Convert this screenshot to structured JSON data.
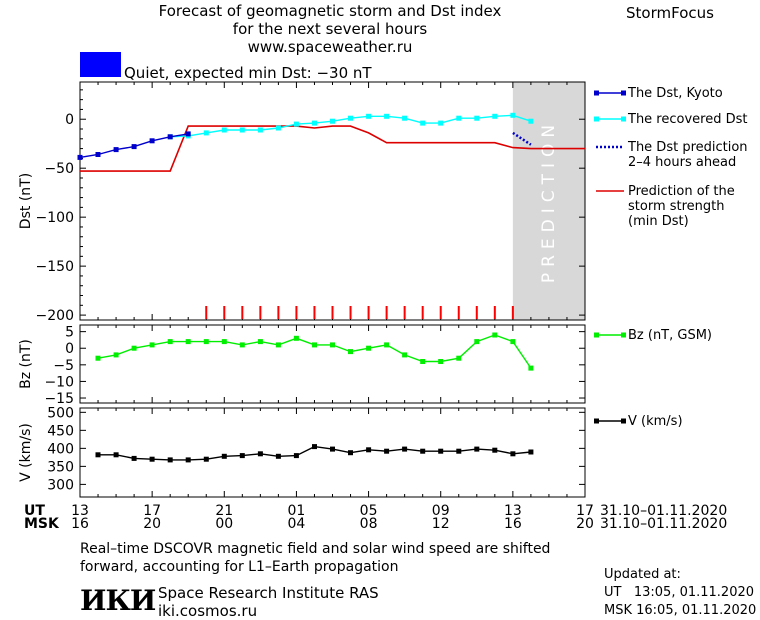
{
  "header": {
    "title_line1": "Forecast of geomagnetic storm and Dst index",
    "title_line2": "for the next several hours",
    "title_line3": "www.spaceweather.ru",
    "brand": "StormFocus",
    "status": "Quiet, expected min Dst: −30 nT",
    "status_color": "#0000ff"
  },
  "legend": {
    "kyoto": "The Dst, Kyoto",
    "recovered": "The recovered Dst",
    "prediction": "The Dst prediction\n2–4 hours ahead",
    "strength": "Prediction of the\nstorm strength\n(min Dst)",
    "bz": "Bz (nT, GSM)",
    "v": "V (km/s)"
  },
  "prediction_label": "PREDICTION",
  "footer": {
    "note_line1": "Real–time DSCOVR magnetic field and solar wind speed are shifted",
    "note_line2": "forward, accounting for L1–Earth propagation",
    "logo": "ИКИ",
    "institute": "Space Research Institute RAS",
    "site": "iki.cosmos.ru",
    "updated": "Updated at:\nUT   13:05, 01.11.2020\nMSK 16:05, 01.11.2020"
  },
  "time_axis": {
    "ut_label": "UT",
    "msk_label": "MSK",
    "ut_ticks": [
      "13",
      "17",
      "21",
      "01",
      "05",
      "09",
      "13",
      "17"
    ],
    "msk_ticks": [
      "16",
      "20",
      "00",
      "04",
      "08",
      "12",
      "16",
      "20"
    ],
    "date_range": "31.10–01.11.2020",
    "x_range": [
      0,
      28
    ]
  },
  "colors": {
    "kyoto": "#0000cc",
    "recovered": "#00ffff",
    "prediction": "#0000cc",
    "strength": "#dd0000",
    "bz": "#00ee00",
    "v": "#000000",
    "shade": "#d8d8d8",
    "markers": "#ff0000"
  },
  "chart_data": [
    {
      "type": "line",
      "ylabel": "Dst (nT)",
      "ylim": [
        -205,
        38
      ],
      "yticks": [
        0,
        -50,
        -100,
        -150,
        -200
      ],
      "prediction_region": [
        24,
        28
      ],
      "series": [
        {
          "name": "The Dst, Kyoto",
          "x": [
            0,
            1,
            2,
            3,
            4,
            5,
            6
          ],
          "y": [
            -39,
            -36,
            -31,
            -28,
            -22,
            -18,
            -15
          ]
        },
        {
          "name": "The recovered Dst",
          "x": [
            5,
            6,
            7,
            8,
            9,
            10,
            11,
            12,
            13,
            14,
            15,
            16,
            17,
            18,
            19,
            20,
            21,
            22,
            23,
            24,
            25
          ],
          "y": [
            -18,
            -17,
            -14,
            -11,
            -11,
            -11,
            -9,
            -5,
            -4,
            -2,
            1,
            3,
            3,
            1,
            -4,
            -4,
            1,
            1,
            3,
            4,
            -2
          ]
        },
        {
          "name": "The Dst prediction 2–4 hours ahead",
          "x": [
            24,
            24.5,
            25
          ],
          "y": [
            -14,
            -20,
            -26
          ]
        },
        {
          "name": "Prediction of the storm strength (min Dst)",
          "x": [
            0,
            5,
            6,
            7,
            8,
            9,
            10,
            11,
            12,
            13,
            14,
            15,
            16,
            17,
            18,
            19,
            20,
            21,
            22,
            23,
            24,
            25,
            26,
            27,
            28
          ],
          "y": [
            -53,
            -53,
            -7,
            -7,
            -7,
            -7,
            -7,
            -7,
            -7,
            -9,
            -7,
            -7,
            -14,
            -24,
            -24,
            -24,
            -24,
            -24,
            -24,
            -24,
            -29,
            -30,
            -30,
            -30,
            -30
          ]
        }
      ],
      "storm_markers_x": [
        7,
        8,
        9,
        10,
        11,
        12,
        13,
        14,
        15,
        16,
        17,
        18,
        19,
        20,
        21,
        22,
        23,
        24
      ]
    },
    {
      "type": "line",
      "ylabel": "Bz (nT)",
      "ylim": [
        -16.5,
        7
      ],
      "yticks": [
        5,
        0,
        -5,
        -10,
        -15
      ],
      "series": [
        {
          "name": "Bz (nT, GSM)",
          "x": [
            1,
            2,
            3,
            4,
            5,
            6,
            7,
            8,
            9,
            10,
            11,
            12,
            13,
            14,
            15,
            16,
            17,
            18,
            19,
            20,
            21,
            22,
            23,
            24,
            25
          ],
          "y": [
            -3,
            -2,
            0,
            1,
            2,
            2,
            2,
            2,
            1,
            2,
            1,
            3,
            1,
            1,
            -1,
            0,
            1,
            -2,
            -4,
            -4,
            -3,
            2,
            4,
            2,
            -6
          ]
        }
      ]
    },
    {
      "type": "line",
      "ylabel": "V (km/s)",
      "ylim": [
        265,
        512
      ],
      "yticks": [
        500,
        450,
        400,
        350,
        300
      ],
      "series": [
        {
          "name": "V (km/s)",
          "x": [
            1,
            2,
            3,
            4,
            5,
            6,
            7,
            8,
            9,
            10,
            11,
            12,
            13,
            14,
            15,
            16,
            17,
            18,
            19,
            20,
            21,
            22,
            23,
            24,
            25
          ],
          "y": [
            382,
            382,
            372,
            370,
            368,
            368,
            370,
            378,
            380,
            385,
            378,
            380,
            405,
            398,
            388,
            396,
            392,
            398,
            392,
            392,
            392,
            398,
            395,
            385,
            390
          ]
        }
      ]
    }
  ]
}
